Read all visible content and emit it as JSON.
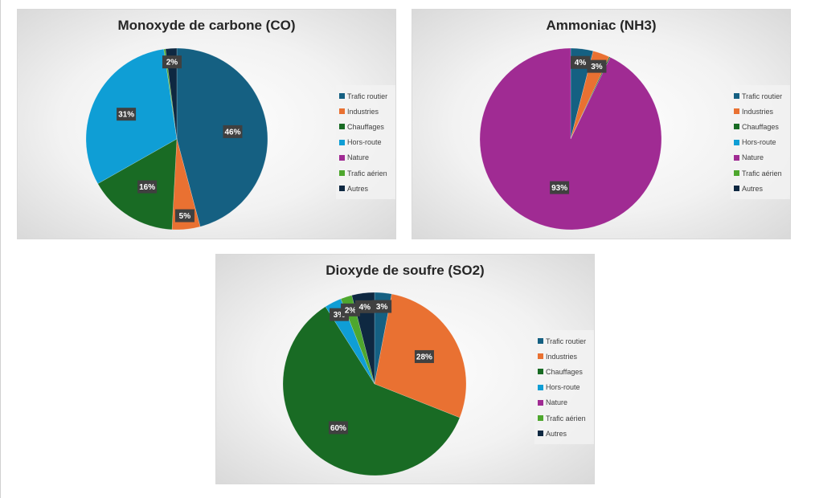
{
  "categories": [
    "Trafic routier",
    "Industries",
    "Chauffages",
    "Hors-route",
    "Nature",
    "Trafic aérien",
    "Autres"
  ],
  "colors": [
    "#156082",
    "#E97132",
    "#196B24",
    "#0F9ED5",
    "#A02B93",
    "#4EA72E",
    "#0E2841"
  ],
  "chart_data": [
    {
      "type": "pie",
      "title": "Monoxyde de carbone (CO)",
      "legend": "right",
      "categories": [
        "Trafic routier",
        "Industries",
        "Chauffages",
        "Hors-route",
        "Nature",
        "Trafic aérien",
        "Autres"
      ],
      "values": [
        46,
        5,
        16,
        31,
        0,
        0.3,
        2
      ],
      "data_labels": [
        "46%",
        "5%",
        "16%",
        "31%",
        "",
        "",
        "2%"
      ]
    },
    {
      "type": "pie",
      "title": "Ammoniac (NH3)",
      "legend": "right",
      "categories": [
        "Trafic routier",
        "Industries",
        "Chauffages",
        "Hors-route",
        "Nature",
        "Trafic aérien",
        "Autres"
      ],
      "values": [
        4,
        3,
        0.2,
        0,
        93,
        0,
        0
      ],
      "data_labels": [
        "4%",
        "3%",
        "",
        "",
        "93%",
        "",
        ""
      ]
    },
    {
      "type": "pie",
      "title": "Dioxyde de soufre (SO2)",
      "legend": "right",
      "categories": [
        "Trafic routier",
        "Industries",
        "Chauffages",
        "Hors-route",
        "Nature",
        "Trafic aérien",
        "Autres"
      ],
      "values": [
        3,
        28,
        60,
        3,
        0,
        2,
        4
      ],
      "data_labels": [
        "3%",
        "28%",
        "60%",
        "3%",
        "",
        "2%",
        "4%"
      ]
    }
  ]
}
